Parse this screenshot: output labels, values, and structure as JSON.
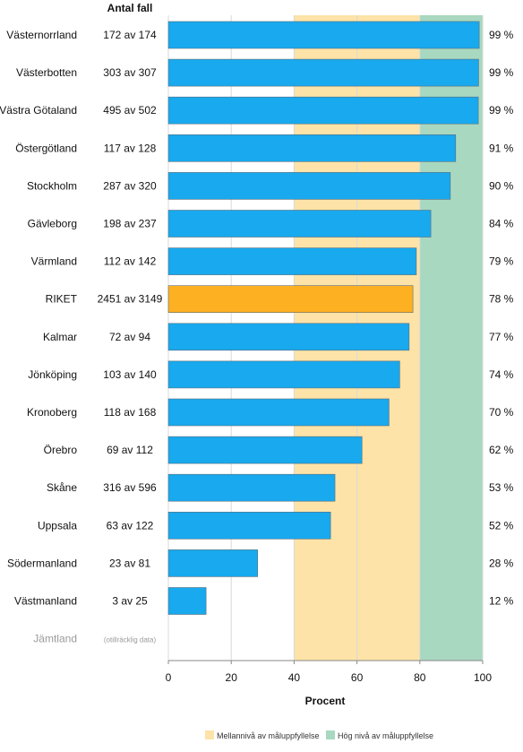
{
  "chart_data": {
    "type": "bar",
    "orientation": "horizontal",
    "count_column_header": "Antal fall",
    "xlabel": "Procent",
    "xlim": [
      0,
      100
    ],
    "xticks": [
      0,
      20,
      40,
      60,
      80,
      100
    ],
    "grid": true,
    "bands": [
      {
        "from": 40,
        "to": 80,
        "label": "Mellannivå av måluppfyllelse",
        "color": "#fde3a7"
      },
      {
        "from": 80,
        "to": 100,
        "label": "Hög nivå av måluppfyllelse",
        "color": "#a8d8c0"
      }
    ],
    "bar_color": "#18a9ee",
    "highlight_color": "#fdb021",
    "legend_position": "bottom",
    "rows": [
      {
        "region": "Västernorrland",
        "count": "172 av 174",
        "value": 98.9,
        "pct_label": "99 %"
      },
      {
        "region": "Västerbotten",
        "count": "303 av 307",
        "value": 98.7,
        "pct_label": "99 %"
      },
      {
        "region": "Västra Götaland",
        "count": "495 av 502",
        "value": 98.6,
        "pct_label": "99 %"
      },
      {
        "region": "Östergötland",
        "count": "117 av 128",
        "value": 91.4,
        "pct_label": "91 %"
      },
      {
        "region": "Stockholm",
        "count": "287 av 320",
        "value": 89.7,
        "pct_label": "90 %"
      },
      {
        "region": "Gävleborg",
        "count": "198 av 237",
        "value": 83.5,
        "pct_label": "84 %"
      },
      {
        "region": "Värmland",
        "count": "112 av 142",
        "value": 78.9,
        "pct_label": "79 %"
      },
      {
        "region": "RIKET",
        "count": "2451 av 3149",
        "value": 77.8,
        "pct_label": "78 %",
        "highlight": true
      },
      {
        "region": "Kalmar",
        "count": "72 av 94",
        "value": 76.6,
        "pct_label": "77 %"
      },
      {
        "region": "Jönköping",
        "count": "103 av 140",
        "value": 73.6,
        "pct_label": "74 %"
      },
      {
        "region": "Kronoberg",
        "count": "118 av 168",
        "value": 70.2,
        "pct_label": "70 %"
      },
      {
        "region": "Örebro",
        "count": "69 av 112",
        "value": 61.6,
        "pct_label": "62 %"
      },
      {
        "region": "Skåne",
        "count": "316 av 596",
        "value": 53.0,
        "pct_label": "53 %"
      },
      {
        "region": "Uppsala",
        "count": "63 av 122",
        "value": 51.6,
        "pct_label": "52 %"
      },
      {
        "region": "Södermanland",
        "count": "23 av 81",
        "value": 28.4,
        "pct_label": "28 %"
      },
      {
        "region": "Västmanland",
        "count": "3 av 25",
        "value": 12.0,
        "pct_label": "12 %"
      },
      {
        "region": "Jämtland",
        "count": "(otillräcklig data)",
        "value": null,
        "pct_label": "",
        "insufficient": true
      }
    ]
  }
}
